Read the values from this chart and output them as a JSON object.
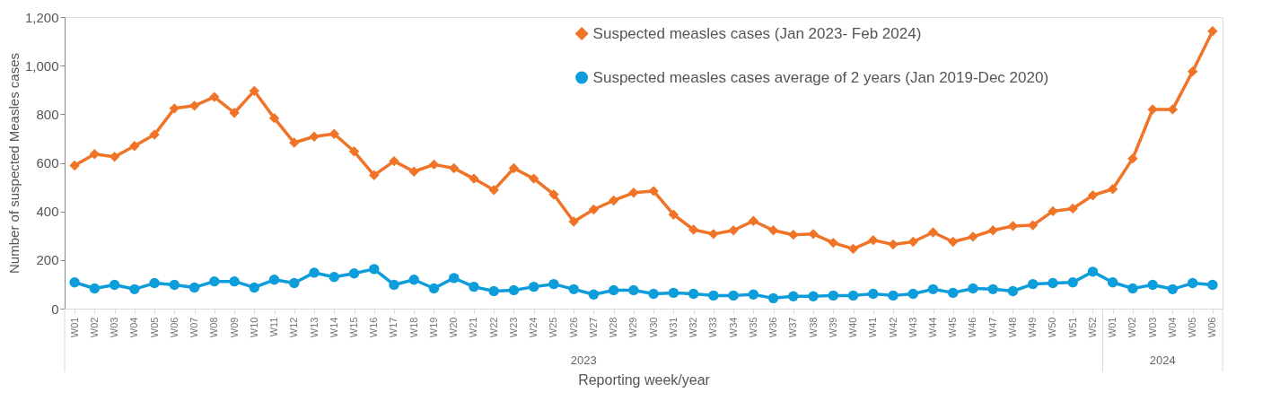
{
  "chart_data": {
    "type": "line",
    "xlabel": "Reporting week/year",
    "ylabel": "Number of suspected Measles cases",
    "categories": [
      "W01",
      "W02",
      "W03",
      "W04",
      "W05",
      "W06",
      "W07",
      "W08",
      "W09",
      "W10",
      "W11",
      "W12",
      "W13",
      "W14",
      "W15",
      "W16",
      "W17",
      "W18",
      "W19",
      "W20",
      "W21",
      "W22",
      "W23",
      "W24",
      "W25",
      "W26",
      "W27",
      "W28",
      "W29",
      "W30",
      "W31",
      "W32",
      "W33",
      "W34",
      "W35",
      "W36",
      "W37",
      "W38",
      "W39",
      "W40",
      "W41",
      "W42",
      "W43",
      "W44",
      "W45",
      "W46",
      "W47",
      "W48",
      "W49",
      "W50",
      "W51",
      "W52",
      "W01",
      "W02",
      "W03",
      "W04",
      "W05",
      "W06"
    ],
    "series": [
      {
        "name": "Suspected measles cases (Jan 2023- Feb 2024)",
        "color": "#f07427",
        "marker": "diamond",
        "values": [
          589,
          636,
          625,
          669,
          716,
          824,
          835,
          871,
          806,
          896,
          784,
          683,
          708,
          719,
          647,
          549,
          607,
          564,
          593,
          578,
          535,
          488,
          578,
          535,
          470,
          358,
          408,
          445,
          477,
          484,
          387,
          325,
          307,
          322,
          361,
          322,
          304,
          307,
          271,
          246,
          282,
          264,
          275,
          314,
          275,
          296,
          322,
          340,
          343,
          401,
          412,
          466,
          492,
          618,
          820,
          820,
          976,
          1142
        ]
      },
      {
        "name": "Suspected measles cases average of 2 years (Jan 2019-Dec 2020)",
        "color": "#0d9ddb",
        "marker": "circle",
        "values": [
          108,
          83,
          98,
          80,
          105,
          98,
          87,
          112,
          112,
          87,
          119,
          105,
          148,
          130,
          145,
          163,
          98,
          119,
          83,
          126,
          90,
          72,
          76,
          90,
          101,
          80,
          58,
          76,
          76,
          61,
          65,
          61,
          54,
          54,
          58,
          43,
          51,
          51,
          54,
          54,
          61,
          54,
          61,
          80,
          65,
          83,
          80,
          72,
          101,
          105,
          108,
          152,
          108,
          83,
          98,
          80,
          105,
          98
        ]
      }
    ],
    "ylim": [
      0,
      1200
    ],
    "yticks": [
      0,
      200,
      400,
      600,
      800,
      {
        "value": 1000,
        "label": "1,000"
      },
      {
        "value": 1200,
        "label": "1,200"
      }
    ],
    "annotations": [
      "2023",
      "2024"
    ],
    "grid": false,
    "legend": "top right",
    "line_style": "solid"
  }
}
